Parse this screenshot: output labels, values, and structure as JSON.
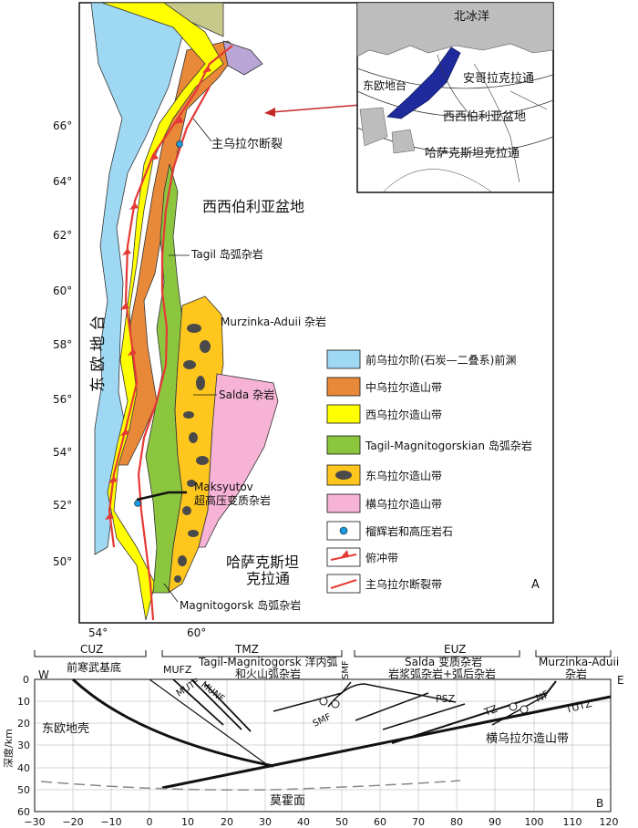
{
  "map": {
    "panel_label": "A",
    "lat_ticks": [
      "66°",
      "64°",
      "62°",
      "60°",
      "58°",
      "56°",
      "54°",
      "52°",
      "50°"
    ],
    "lon_ticks": [
      "54°",
      "60°"
    ],
    "labels": {
      "main_fault": "主乌拉尔断裂",
      "west_siberia": "西西伯利亚盆地",
      "tagil": "Tagil 岛弧杂岩",
      "murzinka": "Murzinka-Aduii 杂岩",
      "salda": "Salda 杂岩",
      "maksyutov_1": "Maksyutov",
      "maksyutov_2": "超高压变质杂岩",
      "east_europe": "东 欧 地 台",
      "kazakh_1": "哈萨克斯坦",
      "kazakh_2": "克拉通",
      "magnitogorsk": "Magnitogorsk 岛弧杂岩"
    }
  },
  "inset": {
    "arctic": "北冰洋",
    "angara": "安哥拉克拉通",
    "east_europe": "东欧地台",
    "west_siberia": "西西伯利亚盆地",
    "kazakh": "哈萨克斯坦克拉通"
  },
  "legend": [
    {
      "label": "前乌拉尔阶(石炭—二叠系)前渊",
      "color": "#9fd8f3"
    },
    {
      "label": "中乌拉尔造山带",
      "color": "#e8893a"
    },
    {
      "label": "西乌拉尔造山带",
      "color": "#ffff00"
    },
    {
      "label": "Tagil-Magnitogorskian 岛弧杂岩",
      "color": "#8cc63f"
    },
    {
      "label": "东乌拉尔造山带",
      "color": "#ffc61e"
    },
    {
      "label": "横乌拉尔造山带",
      "color": "#f6b3d6"
    },
    {
      "label": "榴辉岩和高压岩石",
      "color": "#1a9be0"
    },
    {
      "label": "俯冲带",
      "color": "#e53935"
    },
    {
      "label": "主乌拉尔断裂带",
      "color": "#e53935"
    }
  ],
  "section": {
    "panel_label": "B",
    "west": "W",
    "east": "E",
    "zones": [
      {
        "code": "CUZ",
        "name": "前寒武基底"
      },
      {
        "code": "TMZ",
        "name_1": "Tagil-Magnitogorsk 洋内弧",
        "name_2": "和火山弧杂岩"
      },
      {
        "code": "SMF"
      },
      {
        "code": "EUZ",
        "name_1": "Salda 变质杂岩",
        "name_2": "岩浆弧杂岩+弧后杂岩"
      },
      {
        "code": "",
        "name_1": "Murzinka-Aduii",
        "name_2": "杂岩"
      }
    ],
    "faults": [
      "MUFZ",
      "MUTF",
      "MUNF",
      "SMF",
      "PSZ",
      "TZ",
      "NF",
      "TUTZ"
    ],
    "labels": {
      "east_europe_crust": "东欧地壳",
      "trans_ural": "横乌拉尔造山带",
      "moho": "莫霍面",
      "depth_axis": "深度/km"
    },
    "x_ticks": [
      "−30",
      "−20",
      "−10",
      "0",
      "10",
      "20",
      "30",
      "40",
      "50",
      "60",
      "70",
      "80",
      "90",
      "100",
      "110",
      "120"
    ],
    "y_ticks": [
      "0",
      "10",
      "20",
      "30",
      "40",
      "50",
      "60"
    ]
  }
}
